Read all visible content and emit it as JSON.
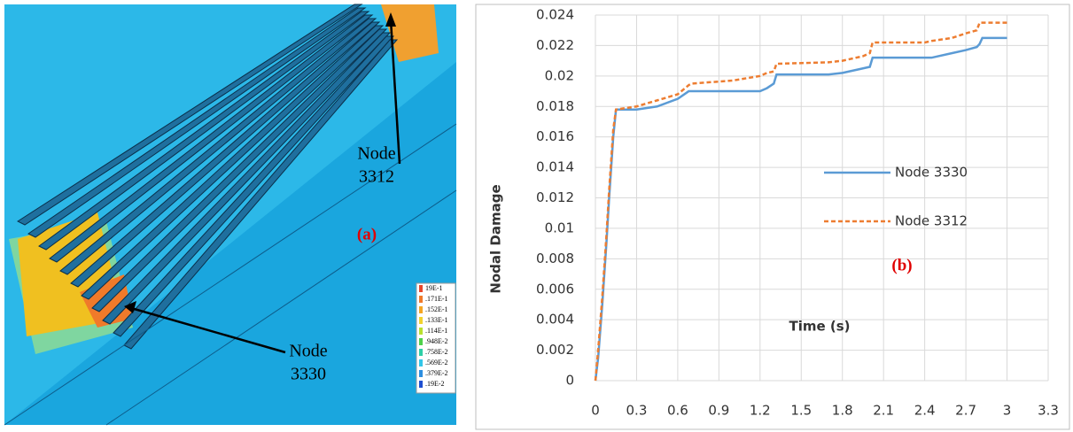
{
  "panel_a": {
    "node_labels": [
      [
        "Node",
        "3312"
      ],
      [
        "Node",
        "3330"
      ]
    ],
    "caption": "(a)",
    "scale_labels": [
      "19E-1",
      ".171E-1",
      ".152E-1",
      ".133E-1",
      ".114E-1",
      ".948E-2",
      ".758E-2",
      ".569E-2",
      ".379E-2",
      ".19E-2"
    ],
    "scale_colors": [
      "#e8462a",
      "#f07a2a",
      "#f5a623",
      "#f2d22e",
      "#b9e02e",
      "#4fd04a",
      "#2ecfa6",
      "#33c6e8",
      "#2d8fe0",
      "#1f4fd0"
    ]
  },
  "chart_data": {
    "type": "line",
    "x_label": "Time (s)",
    "y_label": "Nodal Damage",
    "annotation": "(b)",
    "x": [
      0,
      0.02,
      0.05,
      0.08,
      0.1,
      0.13,
      0.15,
      0.3,
      0.45,
      0.6,
      0.68,
      0.7,
      1.0,
      1.2,
      1.25,
      1.3,
      1.32,
      1.7,
      1.8,
      1.95,
      2.0,
      2.02,
      2.4,
      2.45,
      2.6,
      2.7,
      2.78,
      2.8,
      2.82,
      3.0
    ],
    "series": [
      {
        "name": "Node 3330",
        "color": "#5b9bd5",
        "dashed": false,
        "values": [
          0,
          0.0015,
          0.005,
          0.009,
          0.012,
          0.016,
          0.0178,
          0.0178,
          0.018,
          0.0185,
          0.019,
          0.019,
          0.019,
          0.019,
          0.0192,
          0.0195,
          0.0201,
          0.0201,
          0.0202,
          0.0205,
          0.0206,
          0.0212,
          0.0212,
          0.0212,
          0.0215,
          0.0217,
          0.0219,
          0.0221,
          0.0225,
          0.0225
        ]
      },
      {
        "name": "Node 3312",
        "color": "#ed7d31",
        "dashed": true,
        "values": [
          0,
          0.002,
          0.0055,
          0.0095,
          0.0125,
          0.0165,
          0.0178,
          0.018,
          0.0184,
          0.0188,
          0.0194,
          0.0195,
          0.0197,
          0.02,
          0.0202,
          0.0203,
          0.0208,
          0.0209,
          0.021,
          0.0213,
          0.0215,
          0.0222,
          0.0222,
          0.0223,
          0.0225,
          0.0228,
          0.023,
          0.0235,
          0.0235,
          0.0235
        ]
      }
    ],
    "xlim": [
      0,
      3.3
    ],
    "xticks": [
      0,
      0.3,
      0.6,
      0.9,
      1.2,
      1.5,
      1.8,
      2.1,
      2.4,
      2.7,
      3,
      3.3
    ],
    "ylim": [
      0,
      0.024
    ],
    "yticks": [
      0,
      0.002,
      0.004,
      0.006,
      0.008,
      0.01,
      0.012,
      0.014,
      0.016,
      0.018,
      0.02,
      0.022,
      0.024
    ],
    "grid": true,
    "legend_position": "center-right"
  }
}
